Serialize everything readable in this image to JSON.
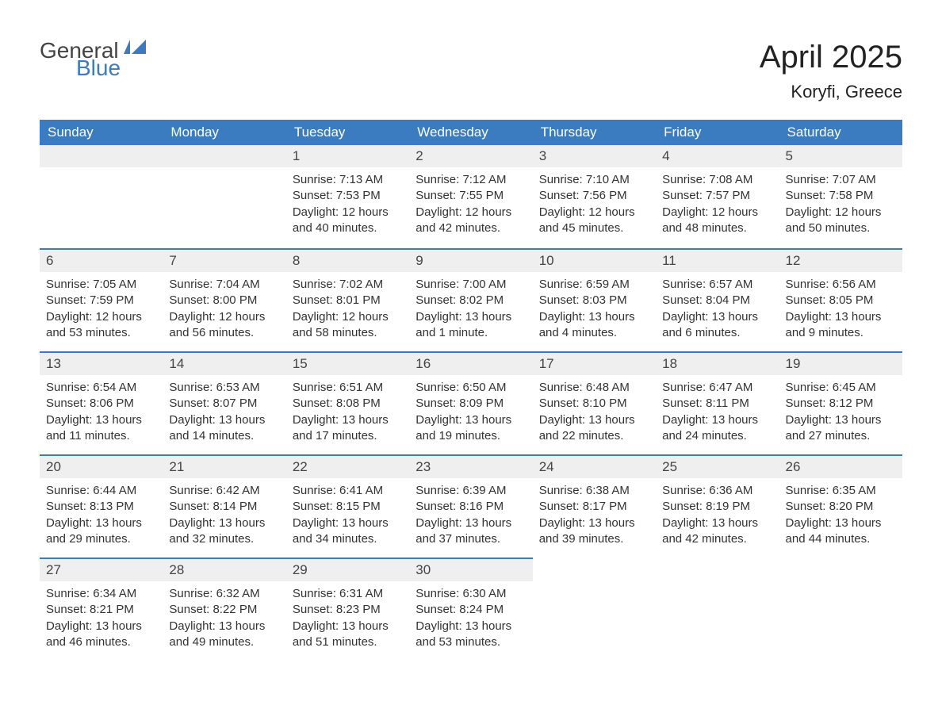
{
  "logo": {
    "word1": "General",
    "word2": "Blue"
  },
  "title": "April 2025",
  "location": "Koryfi, Greece",
  "colors": {
    "header_bg": "#3b7bbf",
    "header_text": "#ffffff",
    "daynum_bg": "#efefef",
    "row_divider": "#3b7bbf",
    "body_text": "#333333",
    "page_bg": "#ffffff",
    "logo_gray": "#444444",
    "logo_blue": "#3b7bbf"
  },
  "typography": {
    "title_fontsize": 40,
    "location_fontsize": 22,
    "header_fontsize": 17,
    "daynum_fontsize": 17,
    "body_fontsize": 15,
    "logo_fontsize": 28
  },
  "day_headers": [
    "Sunday",
    "Monday",
    "Tuesday",
    "Wednesday",
    "Thursday",
    "Friday",
    "Saturday"
  ],
  "weeks": [
    [
      null,
      null,
      {
        "n": "1",
        "sr": "Sunrise: 7:13 AM",
        "ss": "Sunset: 7:53 PM",
        "dl": "Daylight: 12 hours and 40 minutes."
      },
      {
        "n": "2",
        "sr": "Sunrise: 7:12 AM",
        "ss": "Sunset: 7:55 PM",
        "dl": "Daylight: 12 hours and 42 minutes."
      },
      {
        "n": "3",
        "sr": "Sunrise: 7:10 AM",
        "ss": "Sunset: 7:56 PM",
        "dl": "Daylight: 12 hours and 45 minutes."
      },
      {
        "n": "4",
        "sr": "Sunrise: 7:08 AM",
        "ss": "Sunset: 7:57 PM",
        "dl": "Daylight: 12 hours and 48 minutes."
      },
      {
        "n": "5",
        "sr": "Sunrise: 7:07 AM",
        "ss": "Sunset: 7:58 PM",
        "dl": "Daylight: 12 hours and 50 minutes."
      }
    ],
    [
      {
        "n": "6",
        "sr": "Sunrise: 7:05 AM",
        "ss": "Sunset: 7:59 PM",
        "dl": "Daylight: 12 hours and 53 minutes."
      },
      {
        "n": "7",
        "sr": "Sunrise: 7:04 AM",
        "ss": "Sunset: 8:00 PM",
        "dl": "Daylight: 12 hours and 56 minutes."
      },
      {
        "n": "8",
        "sr": "Sunrise: 7:02 AM",
        "ss": "Sunset: 8:01 PM",
        "dl": "Daylight: 12 hours and 58 minutes."
      },
      {
        "n": "9",
        "sr": "Sunrise: 7:00 AM",
        "ss": "Sunset: 8:02 PM",
        "dl": "Daylight: 13 hours and 1 minute."
      },
      {
        "n": "10",
        "sr": "Sunrise: 6:59 AM",
        "ss": "Sunset: 8:03 PM",
        "dl": "Daylight: 13 hours and 4 minutes."
      },
      {
        "n": "11",
        "sr": "Sunrise: 6:57 AM",
        "ss": "Sunset: 8:04 PM",
        "dl": "Daylight: 13 hours and 6 minutes."
      },
      {
        "n": "12",
        "sr": "Sunrise: 6:56 AM",
        "ss": "Sunset: 8:05 PM",
        "dl": "Daylight: 13 hours and 9 minutes."
      }
    ],
    [
      {
        "n": "13",
        "sr": "Sunrise: 6:54 AM",
        "ss": "Sunset: 8:06 PM",
        "dl": "Daylight: 13 hours and 11 minutes."
      },
      {
        "n": "14",
        "sr": "Sunrise: 6:53 AM",
        "ss": "Sunset: 8:07 PM",
        "dl": "Daylight: 13 hours and 14 minutes."
      },
      {
        "n": "15",
        "sr": "Sunrise: 6:51 AM",
        "ss": "Sunset: 8:08 PM",
        "dl": "Daylight: 13 hours and 17 minutes."
      },
      {
        "n": "16",
        "sr": "Sunrise: 6:50 AM",
        "ss": "Sunset: 8:09 PM",
        "dl": "Daylight: 13 hours and 19 minutes."
      },
      {
        "n": "17",
        "sr": "Sunrise: 6:48 AM",
        "ss": "Sunset: 8:10 PM",
        "dl": "Daylight: 13 hours and 22 minutes."
      },
      {
        "n": "18",
        "sr": "Sunrise: 6:47 AM",
        "ss": "Sunset: 8:11 PM",
        "dl": "Daylight: 13 hours and 24 minutes."
      },
      {
        "n": "19",
        "sr": "Sunrise: 6:45 AM",
        "ss": "Sunset: 8:12 PM",
        "dl": "Daylight: 13 hours and 27 minutes."
      }
    ],
    [
      {
        "n": "20",
        "sr": "Sunrise: 6:44 AM",
        "ss": "Sunset: 8:13 PM",
        "dl": "Daylight: 13 hours and 29 minutes."
      },
      {
        "n": "21",
        "sr": "Sunrise: 6:42 AM",
        "ss": "Sunset: 8:14 PM",
        "dl": "Daylight: 13 hours and 32 minutes."
      },
      {
        "n": "22",
        "sr": "Sunrise: 6:41 AM",
        "ss": "Sunset: 8:15 PM",
        "dl": "Daylight: 13 hours and 34 minutes."
      },
      {
        "n": "23",
        "sr": "Sunrise: 6:39 AM",
        "ss": "Sunset: 8:16 PM",
        "dl": "Daylight: 13 hours and 37 minutes."
      },
      {
        "n": "24",
        "sr": "Sunrise: 6:38 AM",
        "ss": "Sunset: 8:17 PM",
        "dl": "Daylight: 13 hours and 39 minutes."
      },
      {
        "n": "25",
        "sr": "Sunrise: 6:36 AM",
        "ss": "Sunset: 8:19 PM",
        "dl": "Daylight: 13 hours and 42 minutes."
      },
      {
        "n": "26",
        "sr": "Sunrise: 6:35 AM",
        "ss": "Sunset: 8:20 PM",
        "dl": "Daylight: 13 hours and 44 minutes."
      }
    ],
    [
      {
        "n": "27",
        "sr": "Sunrise: 6:34 AM",
        "ss": "Sunset: 8:21 PM",
        "dl": "Daylight: 13 hours and 46 minutes."
      },
      {
        "n": "28",
        "sr": "Sunrise: 6:32 AM",
        "ss": "Sunset: 8:22 PM",
        "dl": "Daylight: 13 hours and 49 minutes."
      },
      {
        "n": "29",
        "sr": "Sunrise: 6:31 AM",
        "ss": "Sunset: 8:23 PM",
        "dl": "Daylight: 13 hours and 51 minutes."
      },
      {
        "n": "30",
        "sr": "Sunrise: 6:30 AM",
        "ss": "Sunset: 8:24 PM",
        "dl": "Daylight: 13 hours and 53 minutes."
      },
      null,
      null,
      null
    ]
  ]
}
